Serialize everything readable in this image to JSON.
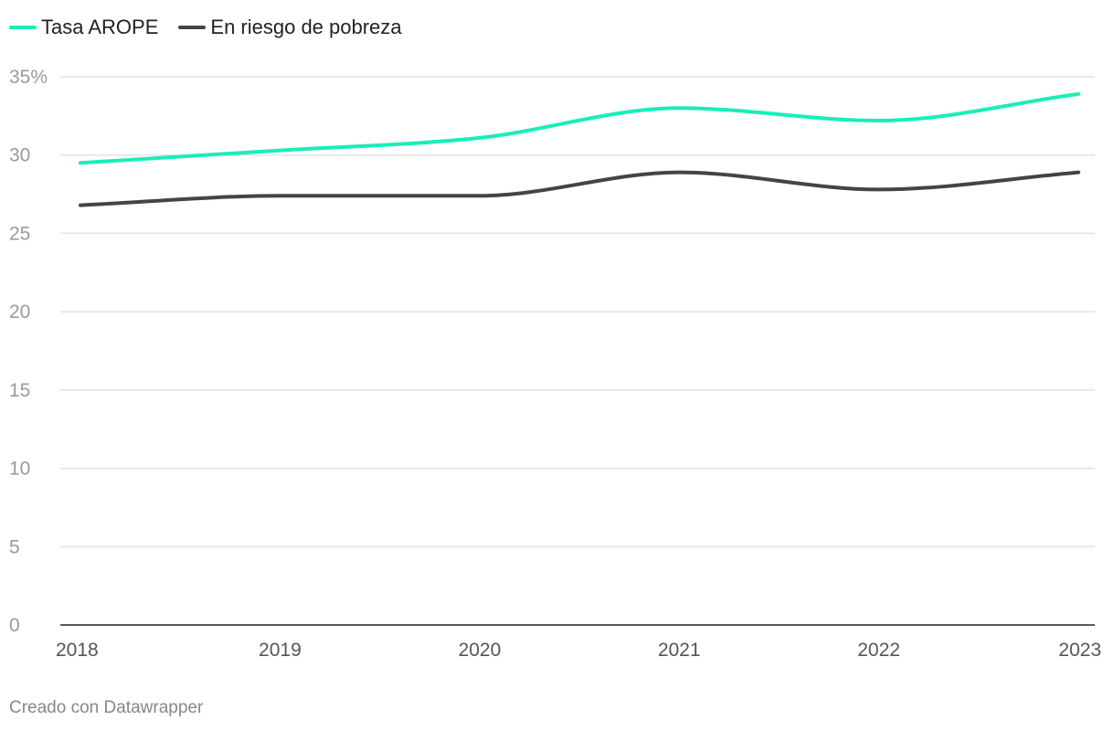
{
  "chart_data": {
    "type": "line",
    "title": "",
    "xlabel": "",
    "ylabel": "",
    "categories": [
      "2018",
      "2019",
      "2020",
      "2021",
      "2022",
      "2023"
    ],
    "series": [
      {
        "name": "Tasa AROPE",
        "color": "#19eeb8",
        "values": [
          29.5,
          30.3,
          31.1,
          33.0,
          32.2,
          33.9
        ]
      },
      {
        "name": "En riesgo de pobreza",
        "color": "#444444",
        "values": [
          26.8,
          27.4,
          27.4,
          28.9,
          27.8,
          28.9
        ]
      }
    ],
    "ylim": [
      0,
      35
    ],
    "yticks": [
      0,
      5,
      10,
      15,
      20,
      25,
      30,
      35
    ],
    "ytick_labels": [
      "0",
      "5",
      "10",
      "15",
      "20",
      "25",
      "30",
      "35%"
    ],
    "grid": true,
    "legend_position": "top-left"
  },
  "legend": {
    "items": [
      {
        "label": "Tasa AROPE",
        "color": "#19eeb8"
      },
      {
        "label": "En riesgo de pobreza",
        "color": "#444444"
      }
    ]
  },
  "footer": {
    "credit": "Creado con Datawrapper"
  }
}
